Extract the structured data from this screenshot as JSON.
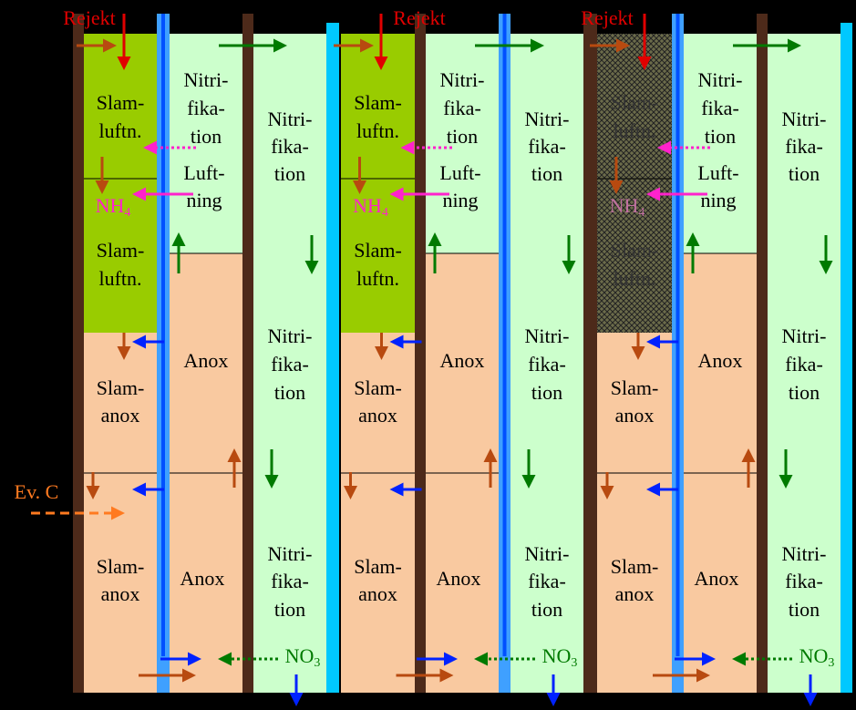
{
  "units": [
    {
      "rejekt": "Rejekt",
      "a_top": [
        "Slam-",
        "luftn."
      ],
      "b_top": [
        "Nitri-",
        "fika-",
        "tion"
      ],
      "b_luft": [
        "Luft-",
        "ning"
      ],
      "c_top": [
        "Nitri-",
        "fika-",
        "tion"
      ],
      "nh4": {
        "base": "NH",
        "sub": "4"
      },
      "a_mid": [
        "Slam-",
        "luftn."
      ],
      "b_anox": "Anox",
      "c_mid": [
        "Nitri-",
        "fika-",
        "tion"
      ],
      "a_anox1": [
        "Slam-",
        "anox"
      ],
      "a_anox2": [
        "Slam-",
        "anox"
      ],
      "b_anox2": "Anox",
      "c_bot": [
        "Nitri-",
        "fika-",
        "tion"
      ],
      "no3": {
        "base": "NO",
        "sub": "3"
      }
    },
    {
      "rejekt": "Rejekt",
      "a_top": [
        "Slam-",
        "luftn."
      ],
      "b_top": [
        "Nitri-",
        "fika-",
        "tion"
      ],
      "b_luft": [
        "Luft-",
        "ning"
      ],
      "c_top": [
        "Nitri-",
        "fika-",
        "tion"
      ],
      "nh4": {
        "base": "NH",
        "sub": "4"
      },
      "a_mid": [
        "Slam-",
        "luftn."
      ],
      "b_anox": "Anox",
      "c_mid": [
        "Nitri-",
        "fika-",
        "tion"
      ],
      "a_anox1": [
        "Slam-",
        "anox"
      ],
      "a_anox2": [
        "Slam-",
        "anox"
      ],
      "b_anox2": "Anox",
      "c_bot": [
        "Nitri-",
        "fika-",
        "tion"
      ],
      "no3": {
        "base": "NO",
        "sub": "3"
      }
    },
    {
      "rejekt": "Rejekt",
      "a_top": [
        "Slam-",
        "luftn."
      ],
      "b_top": [
        "Nitri-",
        "fika-",
        "tion"
      ],
      "b_luft": [
        "Luft-",
        "ning"
      ],
      "c_top": [
        "Nitri-",
        "fika-",
        "tion"
      ],
      "nh4": {
        "base": "NH",
        "sub": "4"
      },
      "a_mid": [
        "Slam-",
        "luftn."
      ],
      "b_anox": "Anox",
      "c_mid": [
        "Nitri-",
        "fika-",
        "tion"
      ],
      "a_anox1": [
        "Slam-",
        "anox"
      ],
      "a_anox2": [
        "Slam-",
        "anox"
      ],
      "b_anox2": "Anox",
      "c_bot": [
        "Nitri-",
        "fika-",
        "tion"
      ],
      "no3": {
        "base": "NO",
        "sub": "3"
      }
    }
  ],
  "ev_c": "Ev. C"
}
